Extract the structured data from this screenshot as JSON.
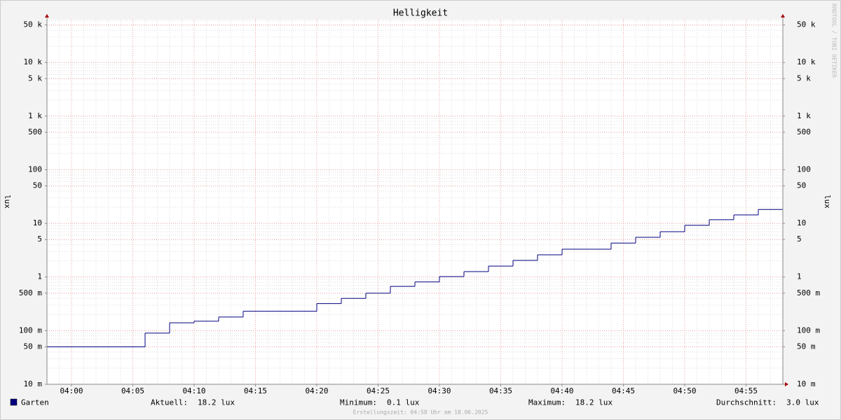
{
  "chart_data": {
    "type": "step",
    "title": "Helligkeit",
    "ylabel": "lux",
    "log_y": true,
    "grid": true,
    "watermark": "RRDTOOL / TOBI OETIKER",
    "footer": "Erstellungszeit: 04:58 Uhr am 18.06.2025",
    "x": [
      "03:58",
      "04:06",
      "04:08",
      "04:10",
      "04:12",
      "04:14",
      "04:20",
      "04:22",
      "04:24",
      "04:26",
      "04:28",
      "04:30",
      "04:32",
      "04:34",
      "04:36",
      "04:38",
      "04:40",
      "04:44",
      "04:46",
      "04:48",
      "04:50",
      "04:52",
      "04:54",
      "04:56"
    ],
    "series": [
      {
        "name": "Garten",
        "color": "#00007f",
        "values": [
          0.05,
          0.09,
          0.14,
          0.15,
          0.18,
          0.23,
          0.32,
          0.4,
          0.5,
          0.67,
          0.81,
          1.02,
          1.26,
          1.6,
          2.04,
          2.6,
          3.3,
          4.3,
          5.5,
          7.0,
          9.2,
          11.7,
          14.4,
          18.2
        ]
      }
    ],
    "xlim": [
      "03:58",
      "04:58"
    ],
    "xticks": [
      "04:00",
      "04:05",
      "04:10",
      "04:15",
      "04:20",
      "04:25",
      "04:30",
      "04:35",
      "04:40",
      "04:45",
      "04:50",
      "04:55"
    ],
    "ylim": [
      0.01,
      63000
    ],
    "yticks": [
      {
        "value": 0.01,
        "label": "10 m"
      },
      {
        "value": 0.05,
        "label": "50 m"
      },
      {
        "value": 0.1,
        "label": "100 m"
      },
      {
        "value": 0.5,
        "label": "500 m"
      },
      1,
      5,
      10,
      50,
      100,
      500,
      {
        "value": 1000,
        "label": "1 k"
      },
      {
        "value": 5000,
        "label": "5 k"
      },
      {
        "value": 10000,
        "label": "10 k"
      },
      {
        "value": 50000,
        "label": "50 k"
      }
    ],
    "stats": [
      {
        "label": "Aktuell:",
        "value": "18.2 lux"
      },
      {
        "label": "Minimum:",
        "value": "0.1 lux"
      },
      {
        "label": "Maximum:",
        "value": "18.2 lux"
      },
      {
        "label": "Durchschnitt:",
        "value": "3.0 lux"
      }
    ]
  }
}
